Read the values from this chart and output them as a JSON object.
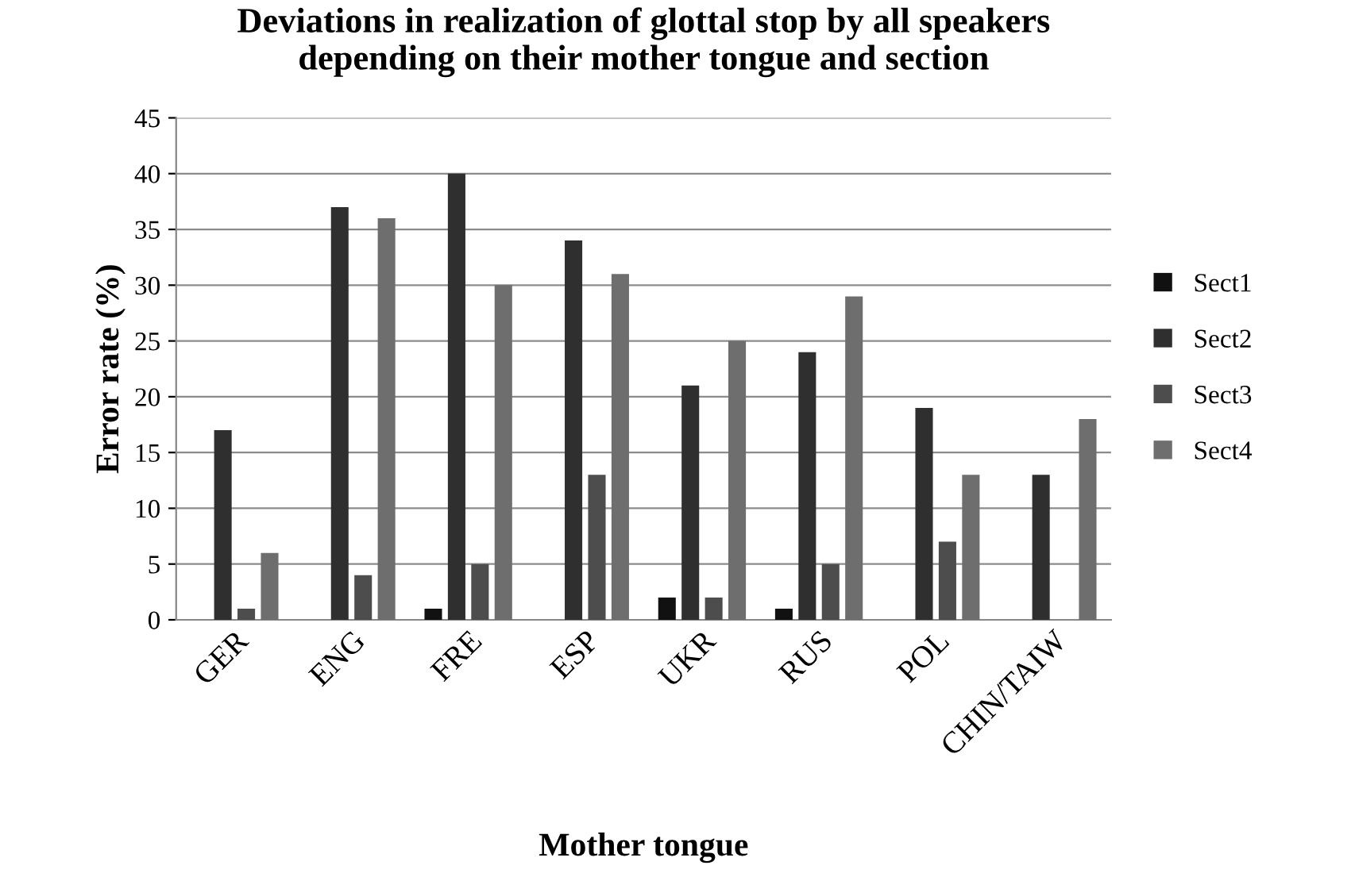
{
  "chart_data": {
    "type": "bar",
    "title": "Deviations in realization of glottal stop by all speakers\ndepending on their mother tongue and section",
    "xlabel": "Mother tongue",
    "ylabel": "Error rate (%)",
    "categories": [
      "GER",
      "ENG",
      "FRE",
      "ESP",
      "UKR",
      "RUS",
      "POL",
      "CHIN/TAIW"
    ],
    "series": [
      {
        "name": "Sect1",
        "color": "#111111",
        "values": [
          0,
          0,
          1,
          0,
          2,
          1,
          0,
          0
        ]
      },
      {
        "name": "Sect2",
        "color": "#2f2f2f",
        "values": [
          17,
          37,
          40,
          34,
          21,
          24,
          19,
          13
        ]
      },
      {
        "name": "Sect3",
        "color": "#4d4d4d",
        "values": [
          1,
          4,
          5,
          13,
          2,
          5,
          7,
          0
        ]
      },
      {
        "name": "Sect4",
        "color": "#6e6e6e",
        "values": [
          6,
          36,
          30,
          31,
          25,
          29,
          13,
          18
        ]
      }
    ],
    "ylim": [
      0,
      45
    ],
    "yticks": [
      0,
      5,
      10,
      15,
      20,
      25,
      30,
      35,
      40,
      45
    ],
    "grid": "y",
    "legend": "right"
  }
}
